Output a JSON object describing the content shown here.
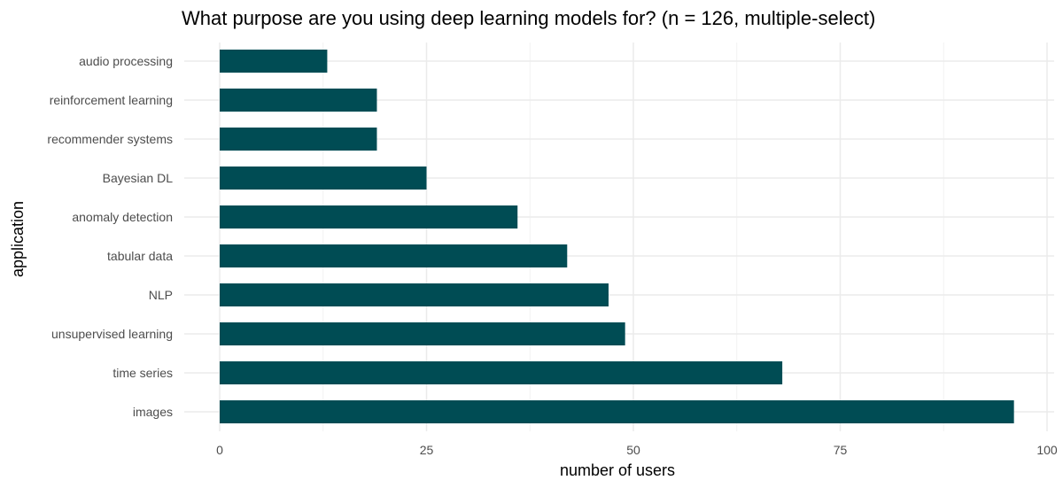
{
  "chart_data": {
    "type": "bar",
    "orientation": "horizontal",
    "title": "What purpose are you using deep learning models for? (n = 126, multiple-select)",
    "xlabel": "number of users",
    "ylabel": "application",
    "categories": [
      "images",
      "time series",
      "unsupervised learning",
      "NLP",
      "tabular data",
      "anomaly detection",
      "Bayesian DL",
      "recommender systems",
      "reinforcement learning",
      "audio processing"
    ],
    "values": [
      96,
      68,
      49,
      47,
      42,
      36,
      25,
      19,
      19,
      13
    ],
    "xlim": [
      0,
      100
    ],
    "xticks": [
      0,
      25,
      50,
      75,
      100
    ],
    "grid": true,
    "legend": "none",
    "bar_color": "#004C54"
  }
}
